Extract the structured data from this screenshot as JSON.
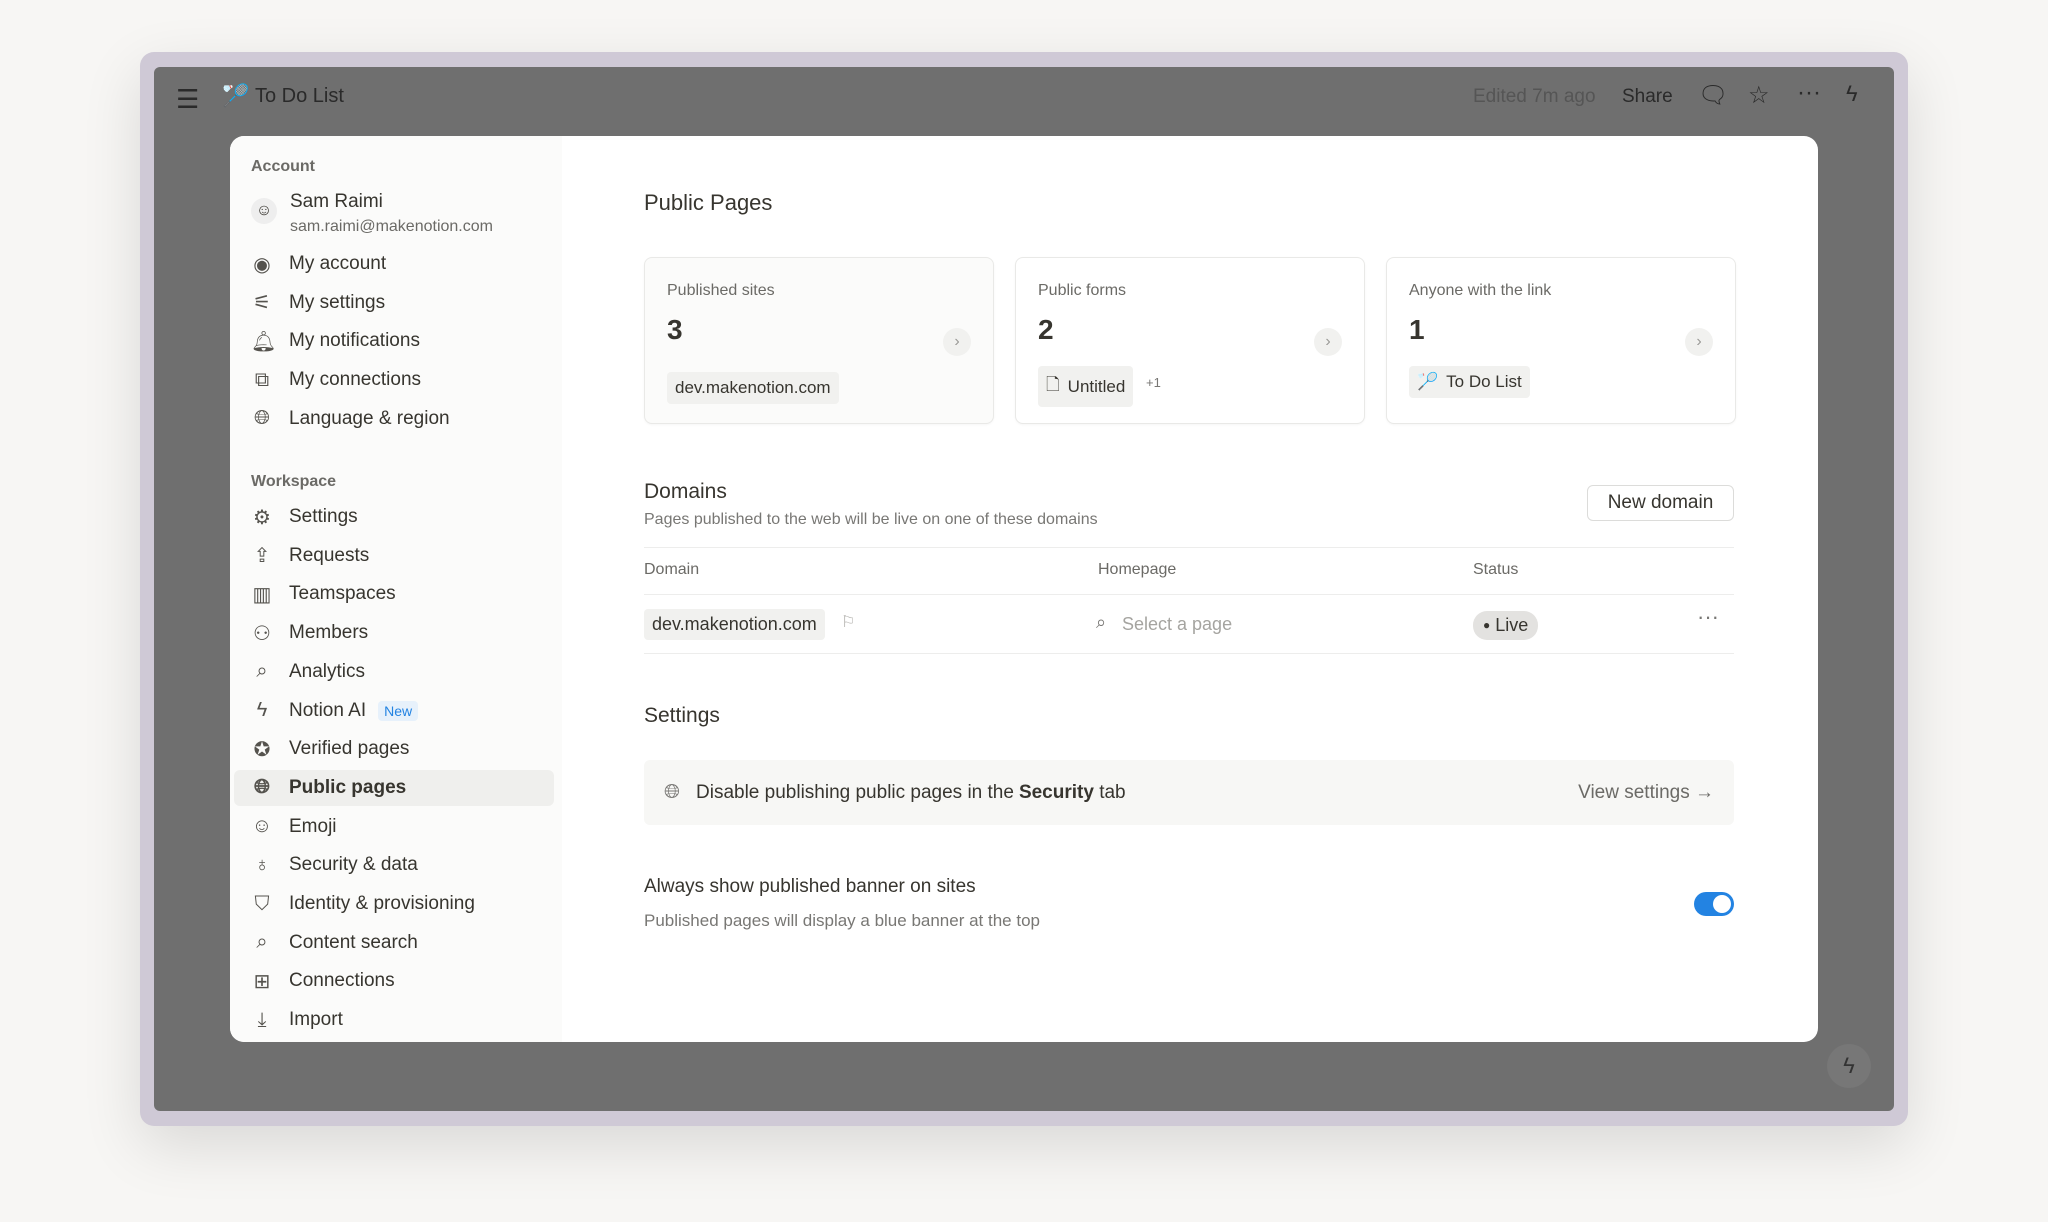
{
  "topbar": {
    "page_title": "To Do List",
    "edited": "Edited 7m ago",
    "share": "Share"
  },
  "sidebar": {
    "account_label": "Account",
    "user": {
      "name": "Sam Raimi",
      "email": "sam.raimi@makenotion.com"
    },
    "account_items": [
      {
        "label": "My account",
        "icon": "user-circle-icon"
      },
      {
        "label": "My settings",
        "icon": "sliders-icon"
      },
      {
        "label": "My notifications",
        "icon": "bell-icon"
      },
      {
        "label": "My connections",
        "icon": "arrow-up-right-box-icon"
      },
      {
        "label": "Language & region",
        "icon": "globe-icon"
      }
    ],
    "workspace_label": "Workspace",
    "workspace_items": [
      {
        "label": "Settings",
        "icon": "gear-icon"
      },
      {
        "label": "Requests",
        "icon": "request-icon"
      },
      {
        "label": "Teamspaces",
        "icon": "building-icon"
      },
      {
        "label": "Members",
        "icon": "people-icon"
      },
      {
        "label": "Analytics",
        "icon": "zoom-chart-icon"
      },
      {
        "label": "Notion AI",
        "icon": "ai-face-icon",
        "badge": "New"
      },
      {
        "label": "Verified pages",
        "icon": "verified-badge-icon"
      },
      {
        "label": "Public pages",
        "icon": "globe-icon",
        "active": true
      },
      {
        "label": "Emoji",
        "icon": "smile-icon"
      },
      {
        "label": "Security & data",
        "icon": "key-icon"
      },
      {
        "label": "Identity & provisioning",
        "icon": "shield-check-icon"
      },
      {
        "label": "Content search",
        "icon": "search-icon"
      },
      {
        "label": "Connections",
        "icon": "grid-icon"
      },
      {
        "label": "Import",
        "icon": "download-icon"
      }
    ]
  },
  "main": {
    "title": "Public Pages",
    "cards": [
      {
        "label": "Published sites",
        "count": "3",
        "chip": "dev.makenotion.com"
      },
      {
        "label": "Public forms",
        "count": "2",
        "chip": "Untitled",
        "extra": "+1"
      },
      {
        "label": "Anyone with the link",
        "count": "1",
        "chip": "To Do List"
      }
    ],
    "domains": {
      "title": "Domains",
      "subtitle": "Pages published to the web will be live on one of these domains",
      "new_button": "New domain",
      "columns": [
        "Domain",
        "Homepage",
        "Status"
      ],
      "rows": [
        {
          "domain": "dev.makenotion.com",
          "homepage_placeholder": "Select a page",
          "status": "Live"
        }
      ]
    },
    "settings": {
      "title": "Settings",
      "banner_pre": "Disable publishing public pages in the ",
      "banner_bold": "Security",
      "banner_post": " tab",
      "view_settings": "View settings →",
      "banner_toggle_label": "Always show published banner on sites",
      "banner_toggle_desc": "Published pages will display a blue banner at the top",
      "banner_toggle_on": true
    }
  },
  "colors": {
    "accent": "#2383e2",
    "overlay": "#6f6f6f",
    "frame": "#cfc9d6"
  }
}
